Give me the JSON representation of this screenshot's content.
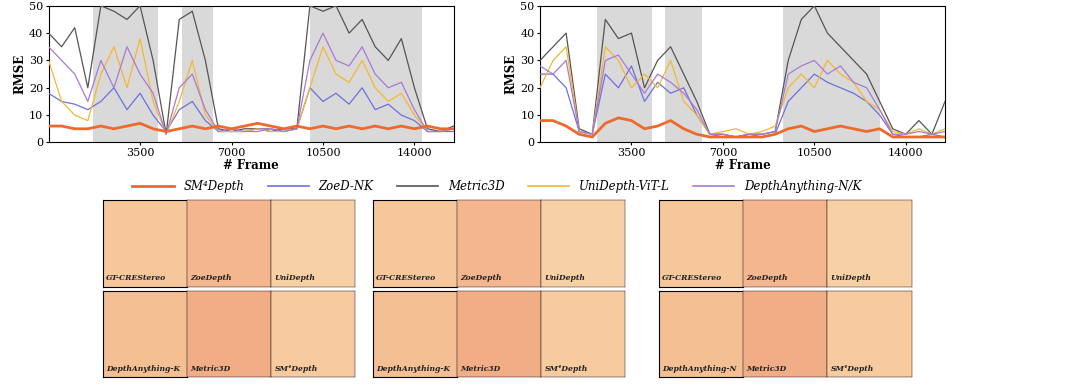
{
  "chart_data": [
    {
      "type": "line",
      "xlabel": "# Frame",
      "ylabel": "RMSE",
      "x": [
        0,
        500,
        1000,
        1500,
        2000,
        2500,
        3000,
        3500,
        4000,
        4500,
        5000,
        5500,
        6000,
        6500,
        7000,
        7500,
        8000,
        8500,
        9000,
        9500,
        10000,
        10500,
        11000,
        11500,
        12000,
        12500,
        13000,
        13500,
        14000,
        14500,
        15000,
        15500
      ],
      "xlim": [
        0,
        15500
      ],
      "xticks": [
        3500,
        7000,
        10500,
        14000
      ],
      "ylim": [
        0,
        50
      ],
      "yticks": [
        0,
        10,
        20,
        30,
        40,
        50
      ],
      "shaded_ranges": [
        [
          1700,
          4200
        ],
        [
          5100,
          6300
        ],
        [
          10000,
          14300
        ]
      ],
      "series": [
        {
          "name": "SM⁴Depth",
          "color": "#ee6a2c",
          "values": [
            6,
            6,
            5,
            5,
            6,
            5,
            6,
            7,
            5,
            4,
            5,
            6,
            5,
            6,
            5,
            6,
            7,
            6,
            5,
            6,
            5,
            6,
            5,
            6,
            5,
            6,
            5,
            6,
            5,
            6,
            5,
            5
          ]
        },
        {
          "name": "ZoeD-NK",
          "color": "#6f6fe0",
          "values": [
            18,
            15,
            14,
            12,
            15,
            20,
            12,
            18,
            10,
            4,
            12,
            15,
            8,
            4,
            4,
            4,
            5,
            5,
            4,
            5,
            20,
            15,
            18,
            14,
            20,
            12,
            14,
            10,
            8,
            4,
            4,
            4
          ]
        },
        {
          "name": "Metric3D",
          "color": "#555555",
          "values": [
            40,
            35,
            42,
            20,
            50,
            48,
            45,
            50,
            30,
            3,
            45,
            48,
            30,
            5,
            4,
            5,
            5,
            4,
            5,
            5,
            50,
            48,
            50,
            40,
            45,
            35,
            30,
            38,
            20,
            5,
            4,
            6
          ]
        },
        {
          "name": "UniDepth-ViT-L",
          "color": "#f5b731",
          "values": [
            30,
            15,
            10,
            8,
            25,
            35,
            20,
            38,
            15,
            3,
            15,
            30,
            10,
            4,
            4,
            4,
            5,
            4,
            4,
            5,
            20,
            35,
            25,
            22,
            30,
            20,
            15,
            18,
            10,
            4,
            4,
            5
          ]
        },
        {
          "name": "DepthAnything-N/K",
          "color": "#a77ad6",
          "values": [
            35,
            30,
            25,
            15,
            30,
            20,
            35,
            25,
            18,
            3,
            20,
            25,
            12,
            4,
            5,
            4,
            4,
            5,
            4,
            5,
            30,
            40,
            30,
            28,
            35,
            25,
            20,
            22,
            12,
            4,
            4,
            5
          ]
        }
      ]
    },
    {
      "type": "line",
      "xlabel": "# Frame",
      "ylabel": "RMSE",
      "x": [
        0,
        500,
        1000,
        1500,
        2000,
        2500,
        3000,
        3500,
        4000,
        4500,
        5000,
        5500,
        6000,
        6500,
        7000,
        7500,
        8000,
        8500,
        9000,
        9500,
        10000,
        10500,
        11000,
        11500,
        12000,
        12500,
        13000,
        13500,
        14000,
        14500,
        15000,
        15500
      ],
      "xlim": [
        0,
        15500
      ],
      "xticks": [
        3500,
        7000,
        10500,
        14000
      ],
      "ylim": [
        0,
        50
      ],
      "yticks": [
        0,
        10,
        20,
        30,
        40,
        50
      ],
      "shaded_ranges": [
        [
          2200,
          4300
        ],
        [
          4800,
          6200
        ],
        [
          9300,
          13000
        ]
      ],
      "series": [
        {
          "name": "SM⁴Depth",
          "color": "#ee6a2c",
          "values": [
            8,
            8,
            6,
            3,
            2,
            7,
            9,
            8,
            5,
            6,
            8,
            5,
            3,
            2,
            2,
            2,
            2,
            2,
            3,
            5,
            6,
            4,
            5,
            6,
            5,
            4,
            5,
            2,
            2,
            2,
            2,
            2
          ]
        },
        {
          "name": "ZoeD-NK",
          "color": "#6f6fe0",
          "values": [
            25,
            25,
            20,
            4,
            3,
            25,
            20,
            28,
            15,
            22,
            18,
            20,
            10,
            3,
            2,
            2,
            3,
            2,
            3,
            15,
            20,
            25,
            22,
            20,
            18,
            15,
            10,
            3,
            2,
            2,
            3,
            2
          ]
        },
        {
          "name": "Metric3D",
          "color": "#555555",
          "values": [
            30,
            35,
            40,
            5,
            3,
            45,
            38,
            40,
            20,
            30,
            35,
            25,
            15,
            3,
            3,
            2,
            3,
            3,
            4,
            30,
            45,
            50,
            40,
            35,
            30,
            25,
            15,
            5,
            3,
            8,
            3,
            15
          ]
        },
        {
          "name": "UniDepth-ViT-L",
          "color": "#f5b731",
          "values": [
            20,
            30,
            35,
            4,
            3,
            35,
            30,
            20,
            25,
            20,
            30,
            15,
            10,
            3,
            4,
            5,
            3,
            4,
            6,
            20,
            25,
            20,
            30,
            25,
            22,
            15,
            12,
            4,
            3,
            5,
            3,
            5
          ]
        },
        {
          "name": "DepthAnything-N/K",
          "color": "#a77ad6",
          "values": [
            28,
            25,
            30,
            4,
            3,
            30,
            32,
            25,
            18,
            25,
            22,
            18,
            12,
            3,
            3,
            2,
            3,
            3,
            4,
            25,
            28,
            30,
            25,
            28,
            22,
            20,
            12,
            3,
            3,
            4,
            3,
            4
          ]
        }
      ]
    }
  ],
  "depth_panels": [
    {
      "labels": [
        "GT-CREStereo",
        "ZoeDepth",
        "UniDepth",
        "DepthAnything-K",
        "Metric3D",
        "SM⁴Depth"
      ]
    },
    {
      "labels": [
        "GT-CREStereo",
        "ZoeDepth",
        "UniDepth",
        "DepthAnything-K",
        "Metric3D",
        "SM⁴Depth"
      ]
    },
    {
      "labels": [
        "GT-CREStereo",
        "ZoeDepth",
        "UniDepth",
        "DepthAnything-N",
        "Metric3D",
        "SM⁴Depth"
      ]
    }
  ]
}
